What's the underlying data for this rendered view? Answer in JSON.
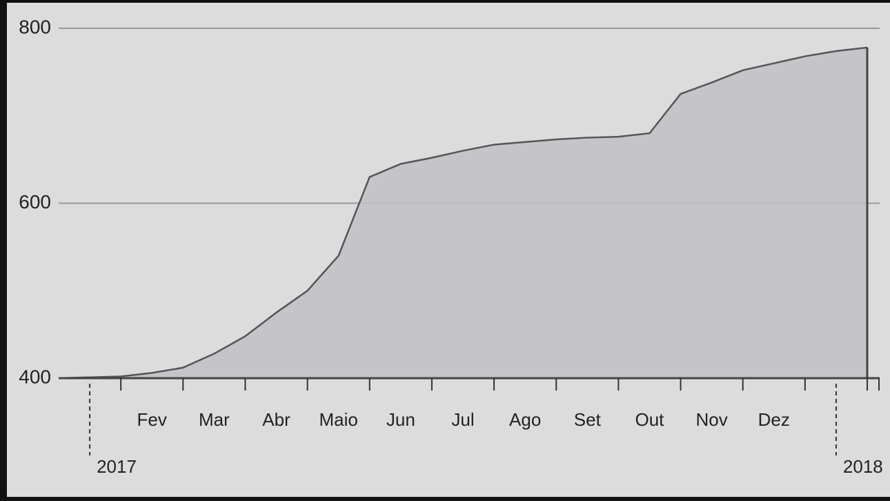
{
  "chart_data": {
    "type": "area",
    "categories": [
      null,
      null,
      null,
      "Fev",
      null,
      "Mar",
      null,
      "Abr",
      null,
      "Maio",
      null,
      "Jun",
      null,
      "Jul",
      null,
      "Ago",
      null,
      "Set",
      null,
      "Out",
      null,
      "Nov",
      null,
      "Dez",
      null,
      null,
      null
    ],
    "year_labels": [
      "2017",
      "2018"
    ],
    "values": [
      400,
      401,
      402,
      406,
      412,
      428,
      448,
      475,
      500,
      540,
      630,
      645,
      652,
      660,
      667,
      670,
      673,
      675,
      676,
      680,
      725,
      738,
      752,
      760,
      768,
      774,
      778
    ],
    "color": "#bfc0c6",
    "ylim": [
      400,
      800
    ],
    "yticks": [
      400,
      600,
      800
    ],
    "grid": true
  }
}
